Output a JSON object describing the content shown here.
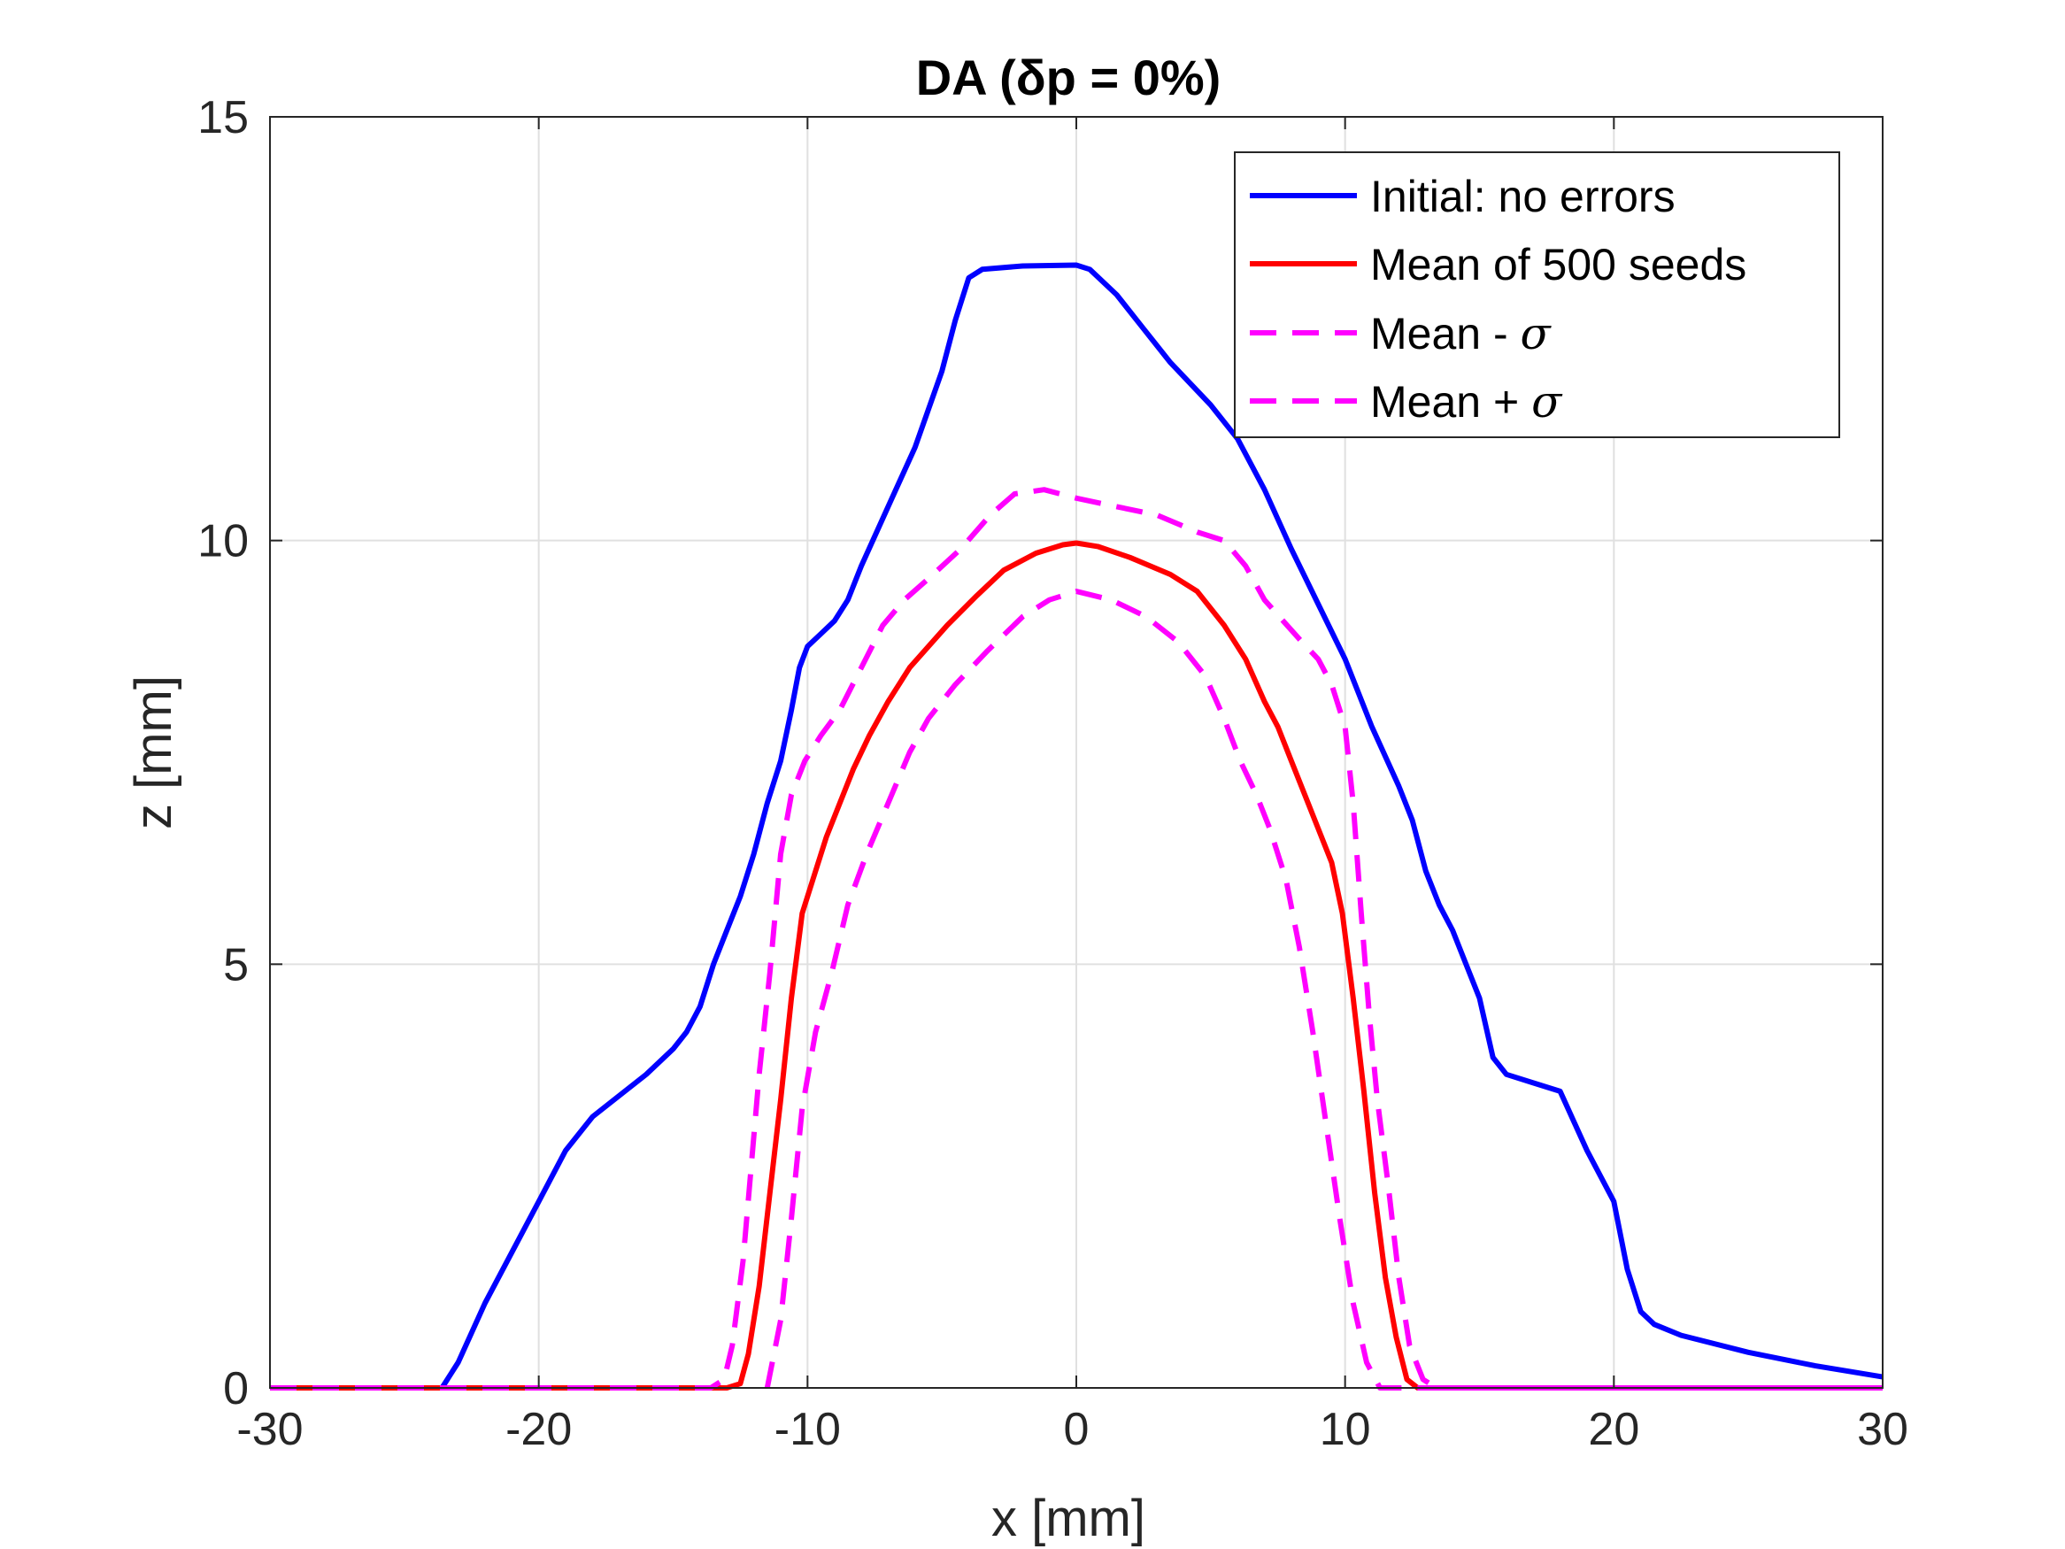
{
  "chart_data": {
    "type": "line",
    "title": "DA (δp = 0%)",
    "xlabel": "x [mm]",
    "ylabel": "z [mm]",
    "xlim": [
      -30,
      30
    ],
    "ylim": [
      0,
      15
    ],
    "xticks": [
      -30,
      -20,
      -10,
      0,
      10,
      20,
      30
    ],
    "yticks": [
      0,
      5,
      10,
      15
    ],
    "grid": true,
    "legend_position": "top-right",
    "series": [
      {
        "name": "Initial: no errors",
        "color": "#0000ff",
        "style": "solid",
        "points": [
          [
            -30,
            0
          ],
          [
            -23.6,
            0
          ],
          [
            -23,
            0.3
          ],
          [
            -22,
            1.0
          ],
          [
            -21,
            1.6
          ],
          [
            -20,
            2.2
          ],
          [
            -19,
            2.8
          ],
          [
            -18,
            3.2
          ],
          [
            -17,
            3.45
          ],
          [
            -16,
            3.7
          ],
          [
            -15,
            4.0
          ],
          [
            -14.5,
            4.2
          ],
          [
            -14,
            4.5
          ],
          [
            -13.5,
            5.0
          ],
          [
            -13,
            5.4
          ],
          [
            -12.5,
            5.8
          ],
          [
            -12,
            6.3
          ],
          [
            -11.5,
            6.9
          ],
          [
            -11,
            7.4
          ],
          [
            -10.6,
            8.0
          ],
          [
            -10.3,
            8.5
          ],
          [
            -10,
            8.75
          ],
          [
            -9.5,
            8.9
          ],
          [
            -9,
            9.05
          ],
          [
            -8.5,
            9.3
          ],
          [
            -8,
            9.7
          ],
          [
            -7,
            10.4
          ],
          [
            -6,
            11.1
          ],
          [
            -5,
            12.0
          ],
          [
            -4.5,
            12.6
          ],
          [
            -4,
            13.1
          ],
          [
            -3.5,
            13.2
          ],
          [
            -2,
            13.24
          ],
          [
            0,
            13.25
          ],
          [
            0.5,
            13.2
          ],
          [
            1.5,
            12.9
          ],
          [
            2.5,
            12.5
          ],
          [
            3.5,
            12.1
          ],
          [
            5,
            11.6
          ],
          [
            6,
            11.2
          ],
          [
            7,
            10.6
          ],
          [
            8,
            9.9
          ],
          [
            9,
            9.25
          ],
          [
            10,
            8.6
          ],
          [
            11,
            7.8
          ],
          [
            12,
            7.1
          ],
          [
            12.5,
            6.7
          ],
          [
            13,
            6.1
          ],
          [
            13.5,
            5.7
          ],
          [
            14,
            5.4
          ],
          [
            15,
            4.6
          ],
          [
            15.5,
            3.9
          ],
          [
            16,
            3.7
          ],
          [
            17,
            3.6
          ],
          [
            18,
            3.5
          ],
          [
            19,
            2.8
          ],
          [
            20,
            2.2
          ],
          [
            20.5,
            1.4
          ],
          [
            21,
            0.9
          ],
          [
            21.5,
            0.75
          ],
          [
            22.5,
            0.62
          ],
          [
            25,
            0.42
          ],
          [
            27.5,
            0.26
          ],
          [
            30,
            0.13
          ]
        ]
      },
      {
        "name": "Mean of 500 seeds",
        "color": "#ff0000",
        "style": "solid",
        "points": [
          [
            -30,
            0
          ],
          [
            -13,
            0
          ],
          [
            -12.5,
            0.05
          ],
          [
            -12.2,
            0.4
          ],
          [
            -11.8,
            1.2
          ],
          [
            -11.4,
            2.3
          ],
          [
            -11,
            3.4
          ],
          [
            -10.6,
            4.6
          ],
          [
            -10.2,
            5.6
          ],
          [
            -9.8,
            6.0
          ],
          [
            -9.3,
            6.5
          ],
          [
            -8.8,
            6.9
          ],
          [
            -8.3,
            7.3
          ],
          [
            -7.7,
            7.7
          ],
          [
            -7,
            8.1
          ],
          [
            -6.2,
            8.5
          ],
          [
            -5.5,
            8.75
          ],
          [
            -4.8,
            9.0
          ],
          [
            -3.7,
            9.35
          ],
          [
            -2.7,
            9.65
          ],
          [
            -1.5,
            9.85
          ],
          [
            -0.5,
            9.95
          ],
          [
            0,
            9.97
          ],
          [
            0.8,
            9.93
          ],
          [
            2,
            9.8
          ],
          [
            3.5,
            9.6
          ],
          [
            4.5,
            9.4
          ],
          [
            5.5,
            9.0
          ],
          [
            6.3,
            8.6
          ],
          [
            7,
            8.1
          ],
          [
            7.5,
            7.8
          ],
          [
            8,
            7.4
          ],
          [
            8.5,
            7.0
          ],
          [
            9,
            6.6
          ],
          [
            9.5,
            6.2
          ],
          [
            9.9,
            5.6
          ],
          [
            10.3,
            4.6
          ],
          [
            10.7,
            3.5
          ],
          [
            11.1,
            2.3
          ],
          [
            11.5,
            1.3
          ],
          [
            11.9,
            0.6
          ],
          [
            12.3,
            0.1
          ],
          [
            12.7,
            0
          ],
          [
            30,
            0
          ]
        ]
      },
      {
        "name": "Mean - σ",
        "color": "#ff00ff",
        "style": "dashed",
        "points": [
          [
            -11.5,
            0
          ],
          [
            -11,
            0.8
          ],
          [
            -10.6,
            2.0
          ],
          [
            -10.2,
            3.3
          ],
          [
            -9.7,
            4.2
          ],
          [
            -9.1,
            4.9
          ],
          [
            -8.5,
            5.7
          ],
          [
            -7.8,
            6.3
          ],
          [
            -7,
            6.9
          ],
          [
            -6.2,
            7.5
          ],
          [
            -5.5,
            7.9
          ],
          [
            -4.5,
            8.3
          ],
          [
            -3.3,
            8.7
          ],
          [
            -2,
            9.1
          ],
          [
            -1,
            9.3
          ],
          [
            0,
            9.4
          ],
          [
            1.3,
            9.3
          ],
          [
            2.6,
            9.1
          ],
          [
            3.8,
            8.8
          ],
          [
            4.8,
            8.4
          ],
          [
            5.5,
            7.9
          ],
          [
            6.1,
            7.4
          ],
          [
            6.7,
            7.0
          ],
          [
            7.2,
            6.6
          ],
          [
            7.8,
            6.0
          ],
          [
            8.3,
            5.2
          ],
          [
            8.8,
            4.2
          ],
          [
            9.3,
            3.1
          ],
          [
            9.8,
            2.0
          ],
          [
            10.3,
            1.0
          ],
          [
            10.8,
            0.3
          ],
          [
            11.3,
            0
          ],
          [
            30,
            0
          ]
        ]
      },
      {
        "name": "Mean + σ",
        "color": "#ff00ff",
        "style": "dashed",
        "points": [
          [
            -30,
            0
          ],
          [
            -13.6,
            0
          ],
          [
            -13.1,
            0.1
          ],
          [
            -12.8,
            0.5
          ],
          [
            -12.4,
            1.5
          ],
          [
            -12.1,
            2.6
          ],
          [
            -11.8,
            3.7
          ],
          [
            -11.4,
            4.9
          ],
          [
            -11,
            6.3
          ],
          [
            -10.6,
            7.0
          ],
          [
            -10.1,
            7.4
          ],
          [
            -9.5,
            7.7
          ],
          [
            -8.8,
            8.0
          ],
          [
            -8,
            8.5
          ],
          [
            -7.2,
            9.0
          ],
          [
            -6.4,
            9.3
          ],
          [
            -5.5,
            9.55
          ],
          [
            -4.3,
            9.9
          ],
          [
            -3.2,
            10.3
          ],
          [
            -2.3,
            10.55
          ],
          [
            -1.2,
            10.6
          ],
          [
            0,
            10.5
          ],
          [
            1.5,
            10.4
          ],
          [
            3,
            10.3
          ],
          [
            4.5,
            10.1
          ],
          [
            5.5,
            10.0
          ],
          [
            6.3,
            9.7
          ],
          [
            7,
            9.3
          ],
          [
            7.7,
            9.05
          ],
          [
            8.4,
            8.8
          ],
          [
            9,
            8.6
          ],
          [
            9.5,
            8.3
          ],
          [
            10,
            7.8
          ],
          [
            10.3,
            6.9
          ],
          [
            10.6,
            5.6
          ],
          [
            10.9,
            4.4
          ],
          [
            11.2,
            3.4
          ],
          [
            11.6,
            2.4
          ],
          [
            12,
            1.3
          ],
          [
            12.4,
            0.5
          ],
          [
            12.9,
            0.1
          ],
          [
            13.4,
            0
          ],
          [
            30,
            0
          ]
        ]
      }
    ]
  }
}
